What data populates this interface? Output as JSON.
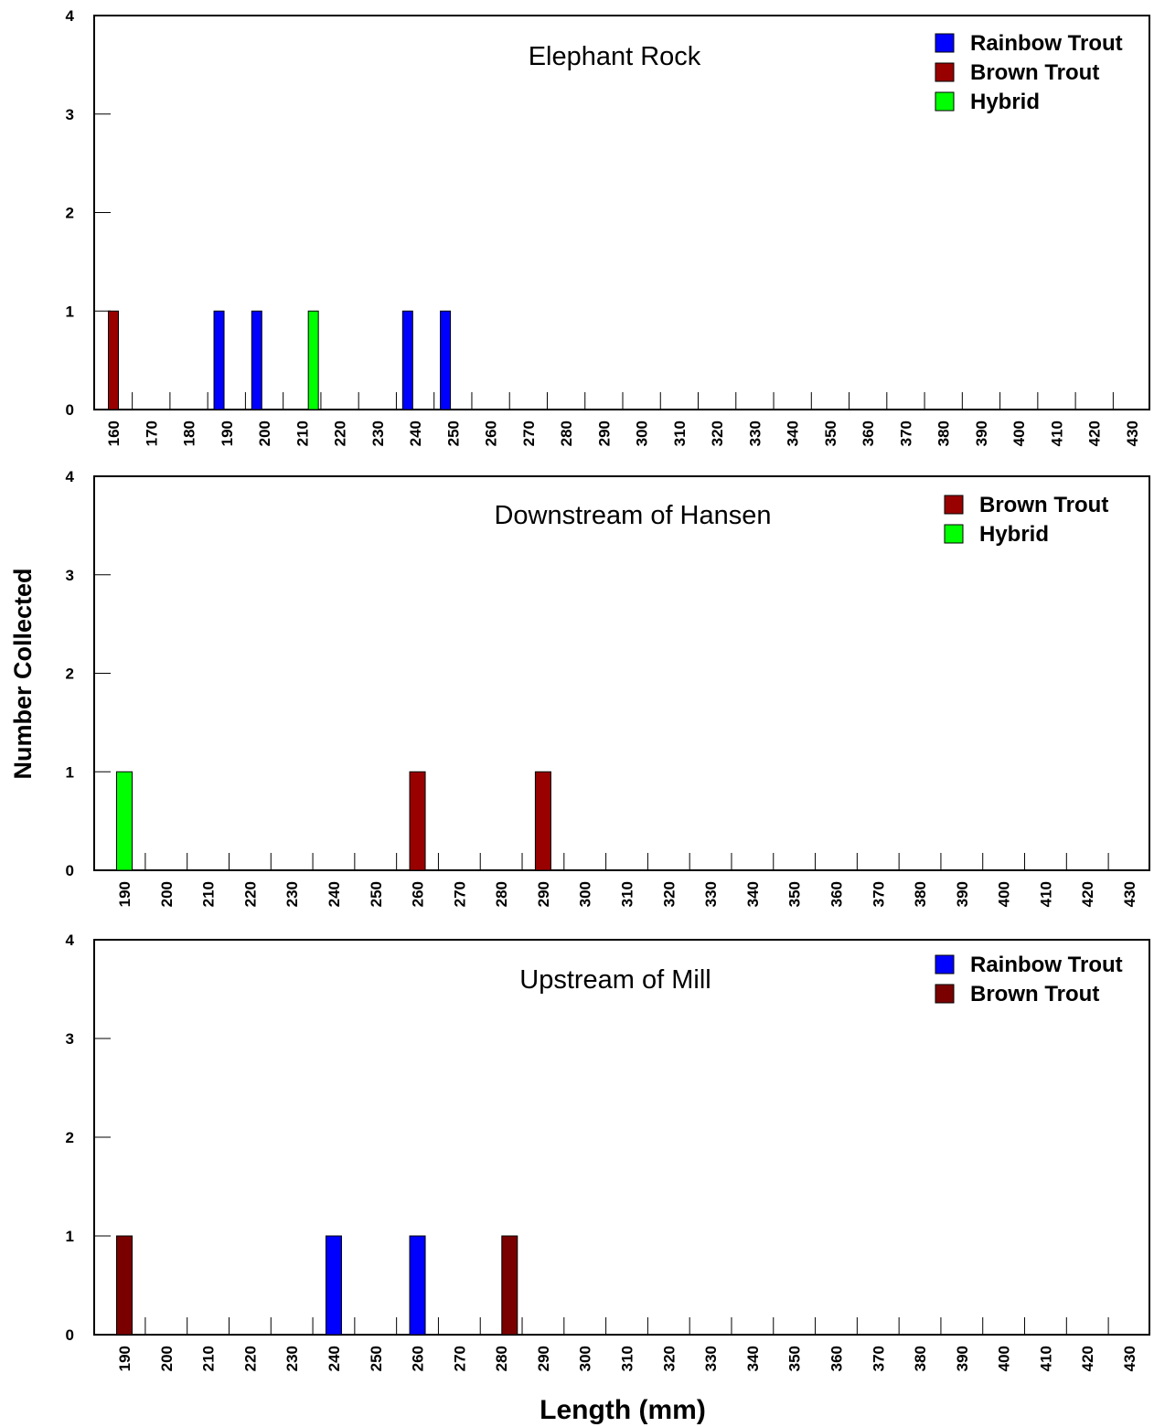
{
  "figure": {
    "ylabel": "Number Collected",
    "xlabel": "Length (mm)"
  },
  "chart_data": [
    {
      "type": "bar",
      "title": "Elephant Rock",
      "ylim": [
        0,
        4
      ],
      "yticks": [
        0,
        1,
        2,
        3,
        4
      ],
      "categories": [
        "160",
        "170",
        "180",
        "190",
        "200",
        "210",
        "220",
        "230",
        "240",
        "250",
        "260",
        "270",
        "280",
        "290",
        "300",
        "310",
        "320",
        "330",
        "340",
        "350",
        "360",
        "370",
        "380",
        "390",
        "400",
        "410",
        "420",
        "430"
      ],
      "legend": [
        {
          "name": "Rainbow Trout",
          "color": "#0000ff"
        },
        {
          "name": "Brown Trout",
          "color": "#990000"
        },
        {
          "name": "Hybrid",
          "color": "#00ff00"
        }
      ],
      "bars": [
        {
          "x": 160,
          "value": 1,
          "color": "#990000",
          "series": "Brown Trout"
        },
        {
          "x": 188,
          "value": 1,
          "color": "#0000ff",
          "series": "Rainbow Trout"
        },
        {
          "x": 198,
          "value": 1,
          "color": "#0000ff",
          "series": "Rainbow Trout"
        },
        {
          "x": 213,
          "value": 1,
          "color": "#00ff00",
          "series": "Hybrid"
        },
        {
          "x": 238,
          "value": 1,
          "color": "#0000ff",
          "series": "Rainbow Trout"
        },
        {
          "x": 248,
          "value": 1,
          "color": "#0000ff",
          "series": "Rainbow Trout"
        }
      ],
      "legend_position": "top-right",
      "grid": false
    },
    {
      "type": "bar",
      "title": "Downstream of Hansen",
      "ylim": [
        0,
        4
      ],
      "yticks": [
        0,
        1,
        2,
        3,
        4
      ],
      "categories": [
        "190",
        "200",
        "210",
        "220",
        "230",
        "240",
        "250",
        "260",
        "270",
        "280",
        "290",
        "300",
        "310",
        "320",
        "330",
        "340",
        "350",
        "360",
        "370",
        "380",
        "390",
        "400",
        "410",
        "420",
        "430"
      ],
      "legend": [
        {
          "name": "Brown Trout",
          "color": "#990000"
        },
        {
          "name": "Hybrid",
          "color": "#00ff00"
        }
      ],
      "bars": [
        {
          "x": 190,
          "value": 1,
          "color": "#00ff00",
          "series": "Hybrid"
        },
        {
          "x": 260,
          "value": 1,
          "color": "#990000",
          "series": "Brown Trout"
        },
        {
          "x": 290,
          "value": 1,
          "color": "#990000",
          "series": "Brown Trout"
        }
      ],
      "legend_position": "top-right",
      "grid": false
    },
    {
      "type": "bar",
      "title": "Upstream of Mill",
      "ylim": [
        0,
        4
      ],
      "yticks": [
        0,
        1,
        2,
        3,
        4
      ],
      "categories": [
        "190",
        "200",
        "210",
        "220",
        "230",
        "240",
        "250",
        "260",
        "270",
        "280",
        "290",
        "300",
        "310",
        "320",
        "330",
        "340",
        "350",
        "360",
        "370",
        "380",
        "390",
        "400",
        "410",
        "420",
        "430"
      ],
      "legend": [
        {
          "name": "Rainbow Trout",
          "color": "#0000ff"
        },
        {
          "name": "Brown Trout",
          "color": "#7a0000"
        }
      ],
      "bars": [
        {
          "x": 190,
          "value": 1,
          "color": "#7a0000",
          "series": "Brown Trout"
        },
        {
          "x": 240,
          "value": 1,
          "color": "#0000ff",
          "series": "Rainbow Trout"
        },
        {
          "x": 260,
          "value": 1,
          "color": "#0000ff",
          "series": "Rainbow Trout"
        },
        {
          "x": 282,
          "value": 1,
          "color": "#7a0000",
          "series": "Brown Trout"
        }
      ],
      "legend_position": "top-right",
      "grid": false
    }
  ]
}
